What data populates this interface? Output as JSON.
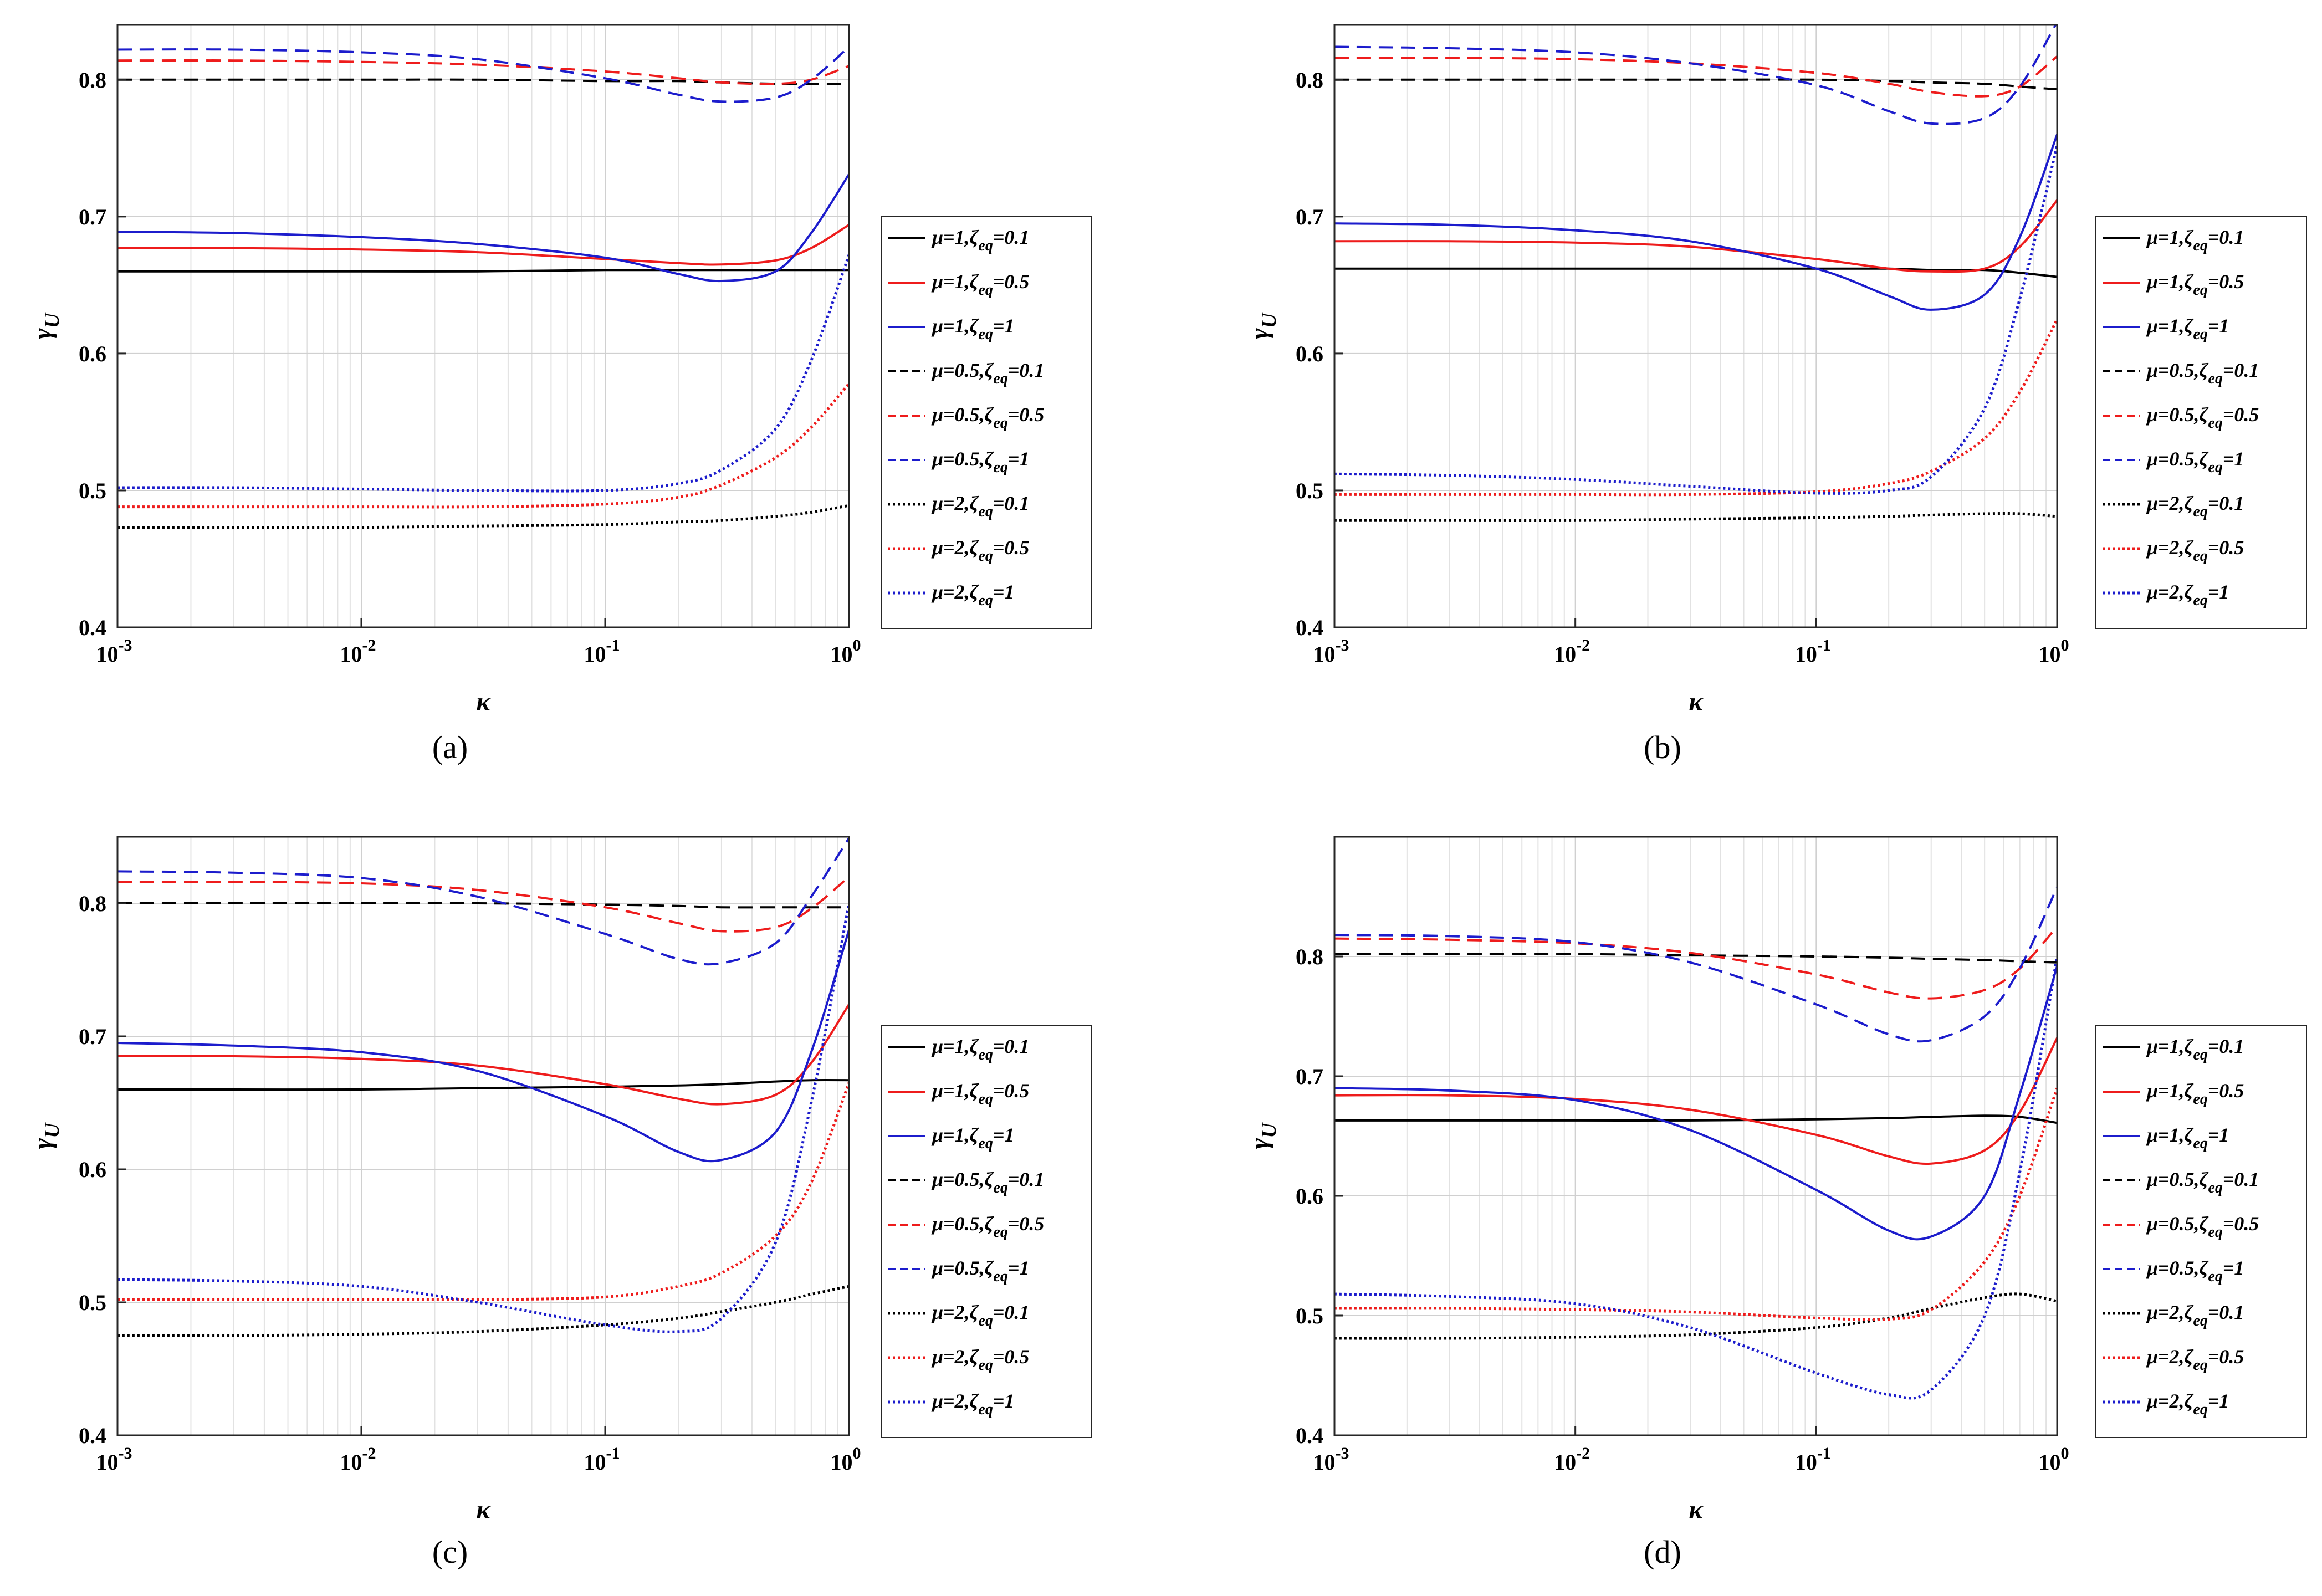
{
  "figure": {
    "legend": [
      {
        "mu": "1",
        "zeta": "0.1",
        "color": "#000000",
        "style": "solid"
      },
      {
        "mu": "1",
        "zeta": "0.5",
        "color": "#ee1c1c",
        "style": "solid"
      },
      {
        "mu": "1",
        "zeta": "1",
        "color": "#1c1ccc",
        "style": "solid"
      },
      {
        "mu": "0.5",
        "zeta": "0.1",
        "color": "#000000",
        "style": "dashed"
      },
      {
        "mu": "0.5",
        "zeta": "0.5",
        "color": "#ee1c1c",
        "style": "dashed"
      },
      {
        "mu": "0.5",
        "zeta": "1",
        "color": "#1c1ccc",
        "style": "dashed"
      },
      {
        "mu": "2",
        "zeta": "0.1",
        "color": "#000000",
        "style": "dotted"
      },
      {
        "mu": "2",
        "zeta": "0.5",
        "color": "#ee1c1c",
        "style": "dotted"
      },
      {
        "mu": "2",
        "zeta": "1",
        "color": "#1c1ccc",
        "style": "dotted"
      }
    ]
  },
  "chart_data": [
    {
      "type": "line",
      "caption": "(a)",
      "xlabel": "κ",
      "ylabel": "γ",
      "ylabel_sub": "U",
      "xscale": "log",
      "xlim": [
        0.001,
        1
      ],
      "ylim": [
        0.4,
        0.84
      ],
      "x_ticks": [
        {
          "base": "10",
          "exp": "-3",
          "value": 0.001
        },
        {
          "base": "10",
          "exp": "-2",
          "value": 0.01
        },
        {
          "base": "10",
          "exp": "-1",
          "value": 0.1
        },
        {
          "base": "10",
          "exp": "0",
          "value": 1
        }
      ],
      "y_ticks": [
        {
          "label": "0.4",
          "value": 0.4
        },
        {
          "label": "0.5",
          "value": 0.5
        },
        {
          "label": "0.6",
          "value": 0.6
        },
        {
          "label": "0.7",
          "value": 0.7
        },
        {
          "label": "0.8",
          "value": 0.8
        }
      ],
      "grid": true,
      "legend_position": "right",
      "x": [
        0.001,
        0.003,
        0.01,
        0.03,
        0.1,
        0.2,
        0.3,
        0.5,
        0.7,
        1.0
      ],
      "series": [
        {
          "name": "μ=1,ζeq=0.1",
          "values": [
            0.66,
            0.66,
            0.66,
            0.66,
            0.661,
            0.661,
            0.661,
            0.661,
            0.661,
            0.661
          ]
        },
        {
          "name": "μ=1,ζeq=0.5",
          "values": [
            0.677,
            0.677,
            0.676,
            0.674,
            0.669,
            0.666,
            0.665,
            0.668,
            0.677,
            0.694
          ]
        },
        {
          "name": "μ=1,ζeq=1",
          "values": [
            0.689,
            0.688,
            0.685,
            0.68,
            0.67,
            0.658,
            0.653,
            0.66,
            0.688,
            0.731
          ]
        },
        {
          "name": "μ=0.5,ζeq=0.1",
          "values": [
            0.8,
            0.8,
            0.8,
            0.8,
            0.799,
            0.799,
            0.798,
            0.797,
            0.797,
            0.797
          ]
        },
        {
          "name": "μ=0.5,ζeq=0.5",
          "values": [
            0.814,
            0.814,
            0.813,
            0.811,
            0.806,
            0.801,
            0.798,
            0.797,
            0.8,
            0.81
          ]
        },
        {
          "name": "μ=0.5,ζeq=1",
          "values": [
            0.822,
            0.822,
            0.82,
            0.815,
            0.801,
            0.789,
            0.784,
            0.787,
            0.8,
            0.824
          ]
        },
        {
          "name": "μ=2,ζeq=0.1",
          "values": [
            0.473,
            0.473,
            0.473,
            0.474,
            0.475,
            0.477,
            0.478,
            0.481,
            0.484,
            0.489
          ]
        },
        {
          "name": "μ=2,ζeq=0.5",
          "values": [
            0.488,
            0.488,
            0.488,
            0.488,
            0.49,
            0.495,
            0.504,
            0.524,
            0.546,
            0.578
          ]
        },
        {
          "name": "μ=2,ζeq=1",
          "values": [
            0.502,
            0.502,
            0.501,
            0.5,
            0.5,
            0.505,
            0.515,
            0.545,
            0.595,
            0.672
          ]
        }
      ]
    },
    {
      "type": "line",
      "caption": "(b)",
      "xlabel": "κ",
      "ylabel": "γ",
      "ylabel_sub": "U",
      "xscale": "log",
      "xlim": [
        0.001,
        1
      ],
      "ylim": [
        0.4,
        0.84
      ],
      "x_ticks": [
        {
          "base": "10",
          "exp": "-3",
          "value": 0.001
        },
        {
          "base": "10",
          "exp": "-2",
          "value": 0.01
        },
        {
          "base": "10",
          "exp": "-1",
          "value": 0.1
        },
        {
          "base": "10",
          "exp": "0",
          "value": 1
        }
      ],
      "y_ticks": [
        {
          "label": "0.4",
          "value": 0.4
        },
        {
          "label": "0.5",
          "value": 0.5
        },
        {
          "label": "0.6",
          "value": 0.6
        },
        {
          "label": "0.7",
          "value": 0.7
        },
        {
          "label": "0.8",
          "value": 0.8
        }
      ],
      "grid": true,
      "legend_position": "right",
      "x": [
        0.001,
        0.003,
        0.01,
        0.03,
        0.1,
        0.2,
        0.3,
        0.5,
        0.7,
        1.0
      ],
      "series": [
        {
          "name": "μ=1,ζeq=0.1",
          "values": [
            0.662,
            0.662,
            0.662,
            0.662,
            0.662,
            0.662,
            0.661,
            0.661,
            0.659,
            0.656
          ]
        },
        {
          "name": "μ=1,ζeq=0.5",
          "values": [
            0.682,
            0.682,
            0.681,
            0.678,
            0.669,
            0.662,
            0.66,
            0.662,
            0.678,
            0.712
          ]
        },
        {
          "name": "μ=1,ζeq=1",
          "values": [
            0.695,
            0.694,
            0.69,
            0.682,
            0.662,
            0.642,
            0.632,
            0.643,
            0.685,
            0.76
          ]
        },
        {
          "name": "μ=0.5,ζeq=0.1",
          "values": [
            0.8,
            0.8,
            0.8,
            0.8,
            0.8,
            0.799,
            0.798,
            0.797,
            0.795,
            0.793
          ]
        },
        {
          "name": "μ=0.5,ζeq=0.5",
          "values": [
            0.816,
            0.816,
            0.815,
            0.812,
            0.805,
            0.797,
            0.791,
            0.788,
            0.795,
            0.817
          ]
        },
        {
          "name": "μ=0.5,ζeq=1",
          "values": [
            0.824,
            0.823,
            0.82,
            0.812,
            0.796,
            0.777,
            0.768,
            0.772,
            0.795,
            0.842
          ]
        },
        {
          "name": "μ=2,ζeq=0.1",
          "values": [
            0.478,
            0.478,
            0.478,
            0.479,
            0.48,
            0.481,
            0.482,
            0.483,
            0.483,
            0.481
          ]
        },
        {
          "name": "μ=2,ζeq=0.5",
          "values": [
            0.497,
            0.497,
            0.497,
            0.497,
            0.499,
            0.505,
            0.514,
            0.538,
            0.572,
            0.625
          ]
        },
        {
          "name": "μ=2,ζeq=1",
          "values": [
            0.512,
            0.511,
            0.508,
            0.503,
            0.498,
            0.5,
            0.51,
            0.56,
            0.64,
            0.752
          ]
        }
      ]
    },
    {
      "type": "line",
      "caption": "(c)",
      "xlabel": "κ",
      "ylabel": "γ",
      "ylabel_sub": "U",
      "xscale": "log",
      "xlim": [
        0.001,
        1
      ],
      "ylim": [
        0.4,
        0.85
      ],
      "x_ticks": [
        {
          "base": "10",
          "exp": "-3",
          "value": 0.001
        },
        {
          "base": "10",
          "exp": "-2",
          "value": 0.01
        },
        {
          "base": "10",
          "exp": "-1",
          "value": 0.1
        },
        {
          "base": "10",
          "exp": "0",
          "value": 1
        }
      ],
      "y_ticks": [
        {
          "label": "0.4",
          "value": 0.4
        },
        {
          "label": "0.5",
          "value": 0.5
        },
        {
          "label": "0.6",
          "value": 0.6
        },
        {
          "label": "0.7",
          "value": 0.7
        },
        {
          "label": "0.8",
          "value": 0.8
        }
      ],
      "grid": true,
      "legend_position": "right",
      "x": [
        0.001,
        0.003,
        0.01,
        0.03,
        0.1,
        0.2,
        0.3,
        0.5,
        0.7,
        1.0
      ],
      "series": [
        {
          "name": "μ=1,ζeq=0.1",
          "values": [
            0.66,
            0.66,
            0.66,
            0.661,
            0.662,
            0.663,
            0.664,
            0.666,
            0.667,
            0.667
          ]
        },
        {
          "name": "μ=1,ζeq=0.5",
          "values": [
            0.685,
            0.685,
            0.683,
            0.678,
            0.664,
            0.653,
            0.649,
            0.656,
            0.68,
            0.724
          ]
        },
        {
          "name": "μ=1,ζeq=1",
          "values": [
            0.695,
            0.693,
            0.688,
            0.674,
            0.64,
            0.613,
            0.607,
            0.628,
            0.688,
            0.78
          ]
        },
        {
          "name": "μ=0.5,ζeq=0.1",
          "values": [
            0.8,
            0.8,
            0.8,
            0.8,
            0.799,
            0.798,
            0.797,
            0.797,
            0.797,
            0.797
          ]
        },
        {
          "name": "μ=0.5,ζeq=0.5",
          "values": [
            0.816,
            0.816,
            0.815,
            0.81,
            0.797,
            0.785,
            0.779,
            0.782,
            0.796,
            0.82
          ]
        },
        {
          "name": "μ=0.5,ζeq=1",
          "values": [
            0.824,
            0.823,
            0.819,
            0.805,
            0.777,
            0.758,
            0.755,
            0.77,
            0.805,
            0.849
          ]
        },
        {
          "name": "μ=2,ζeq=0.1",
          "values": [
            0.475,
            0.475,
            0.476,
            0.478,
            0.483,
            0.488,
            0.493,
            0.5,
            0.506,
            0.512
          ]
        },
        {
          "name": "μ=2,ζeq=0.5",
          "values": [
            0.502,
            0.502,
            0.502,
            0.502,
            0.504,
            0.512,
            0.522,
            0.55,
            0.59,
            0.665
          ]
        },
        {
          "name": "μ=2,ζeq=1",
          "values": [
            0.517,
            0.516,
            0.512,
            0.5,
            0.483,
            0.478,
            0.488,
            0.545,
            0.65,
            0.8
          ]
        }
      ]
    },
    {
      "type": "line",
      "caption": "(d)",
      "xlabel": "κ",
      "ylabel": "γ",
      "ylabel_sub": "U",
      "xscale": "log",
      "xlim": [
        0.001,
        1
      ],
      "ylim": [
        0.4,
        0.9
      ],
      "x_ticks": [
        {
          "base": "10",
          "exp": "-3",
          "value": 0.001
        },
        {
          "base": "10",
          "exp": "-2",
          "value": 0.01
        },
        {
          "base": "10",
          "exp": "-1",
          "value": 0.1
        },
        {
          "base": "10",
          "exp": "0",
          "value": 1
        }
      ],
      "y_ticks": [
        {
          "label": "0.4",
          "value": 0.4
        },
        {
          "label": "0.5",
          "value": 0.5
        },
        {
          "label": "0.6",
          "value": 0.6
        },
        {
          "label": "0.7",
          "value": 0.7
        },
        {
          "label": "0.8",
          "value": 0.8
        }
      ],
      "grid": true,
      "legend_position": "right",
      "x": [
        0.001,
        0.003,
        0.01,
        0.03,
        0.1,
        0.2,
        0.3,
        0.5,
        0.7,
        1.0
      ],
      "series": [
        {
          "name": "μ=1,ζeq=0.1",
          "values": [
            0.663,
            0.663,
            0.663,
            0.663,
            0.664,
            0.665,
            0.666,
            0.667,
            0.666,
            0.661
          ]
        },
        {
          "name": "μ=1,ζeq=0.5",
          "values": [
            0.684,
            0.684,
            0.681,
            0.672,
            0.651,
            0.633,
            0.627,
            0.638,
            0.67,
            0.732
          ]
        },
        {
          "name": "μ=1,ζeq=1",
          "values": [
            0.69,
            0.688,
            0.68,
            0.655,
            0.605,
            0.571,
            0.566,
            0.6,
            0.685,
            0.792
          ]
        },
        {
          "name": "μ=0.5,ζeq=0.1",
          "values": [
            0.802,
            0.802,
            0.802,
            0.801,
            0.8,
            0.799,
            0.798,
            0.797,
            0.796,
            0.795
          ]
        },
        {
          "name": "μ=0.5,ζeq=0.5",
          "values": [
            0.815,
            0.814,
            0.811,
            0.803,
            0.785,
            0.77,
            0.765,
            0.772,
            0.79,
            0.825
          ]
        },
        {
          "name": "μ=0.5,ζeq=1",
          "values": [
            0.818,
            0.817,
            0.812,
            0.795,
            0.76,
            0.735,
            0.73,
            0.75,
            0.79,
            0.858
          ]
        },
        {
          "name": "μ=2,ζeq=0.1",
          "values": [
            0.481,
            0.481,
            0.482,
            0.484,
            0.49,
            0.498,
            0.506,
            0.515,
            0.518,
            0.512
          ]
        },
        {
          "name": "μ=2,ζeq=0.5",
          "values": [
            0.506,
            0.506,
            0.505,
            0.503,
            0.498,
            0.497,
            0.505,
            0.545,
            0.6,
            0.69
          ]
        },
        {
          "name": "μ=2,ζeq=1",
          "values": [
            0.518,
            0.516,
            0.51,
            0.49,
            0.452,
            0.434,
            0.438,
            0.5,
            0.62,
            0.8
          ]
        }
      ]
    }
  ]
}
